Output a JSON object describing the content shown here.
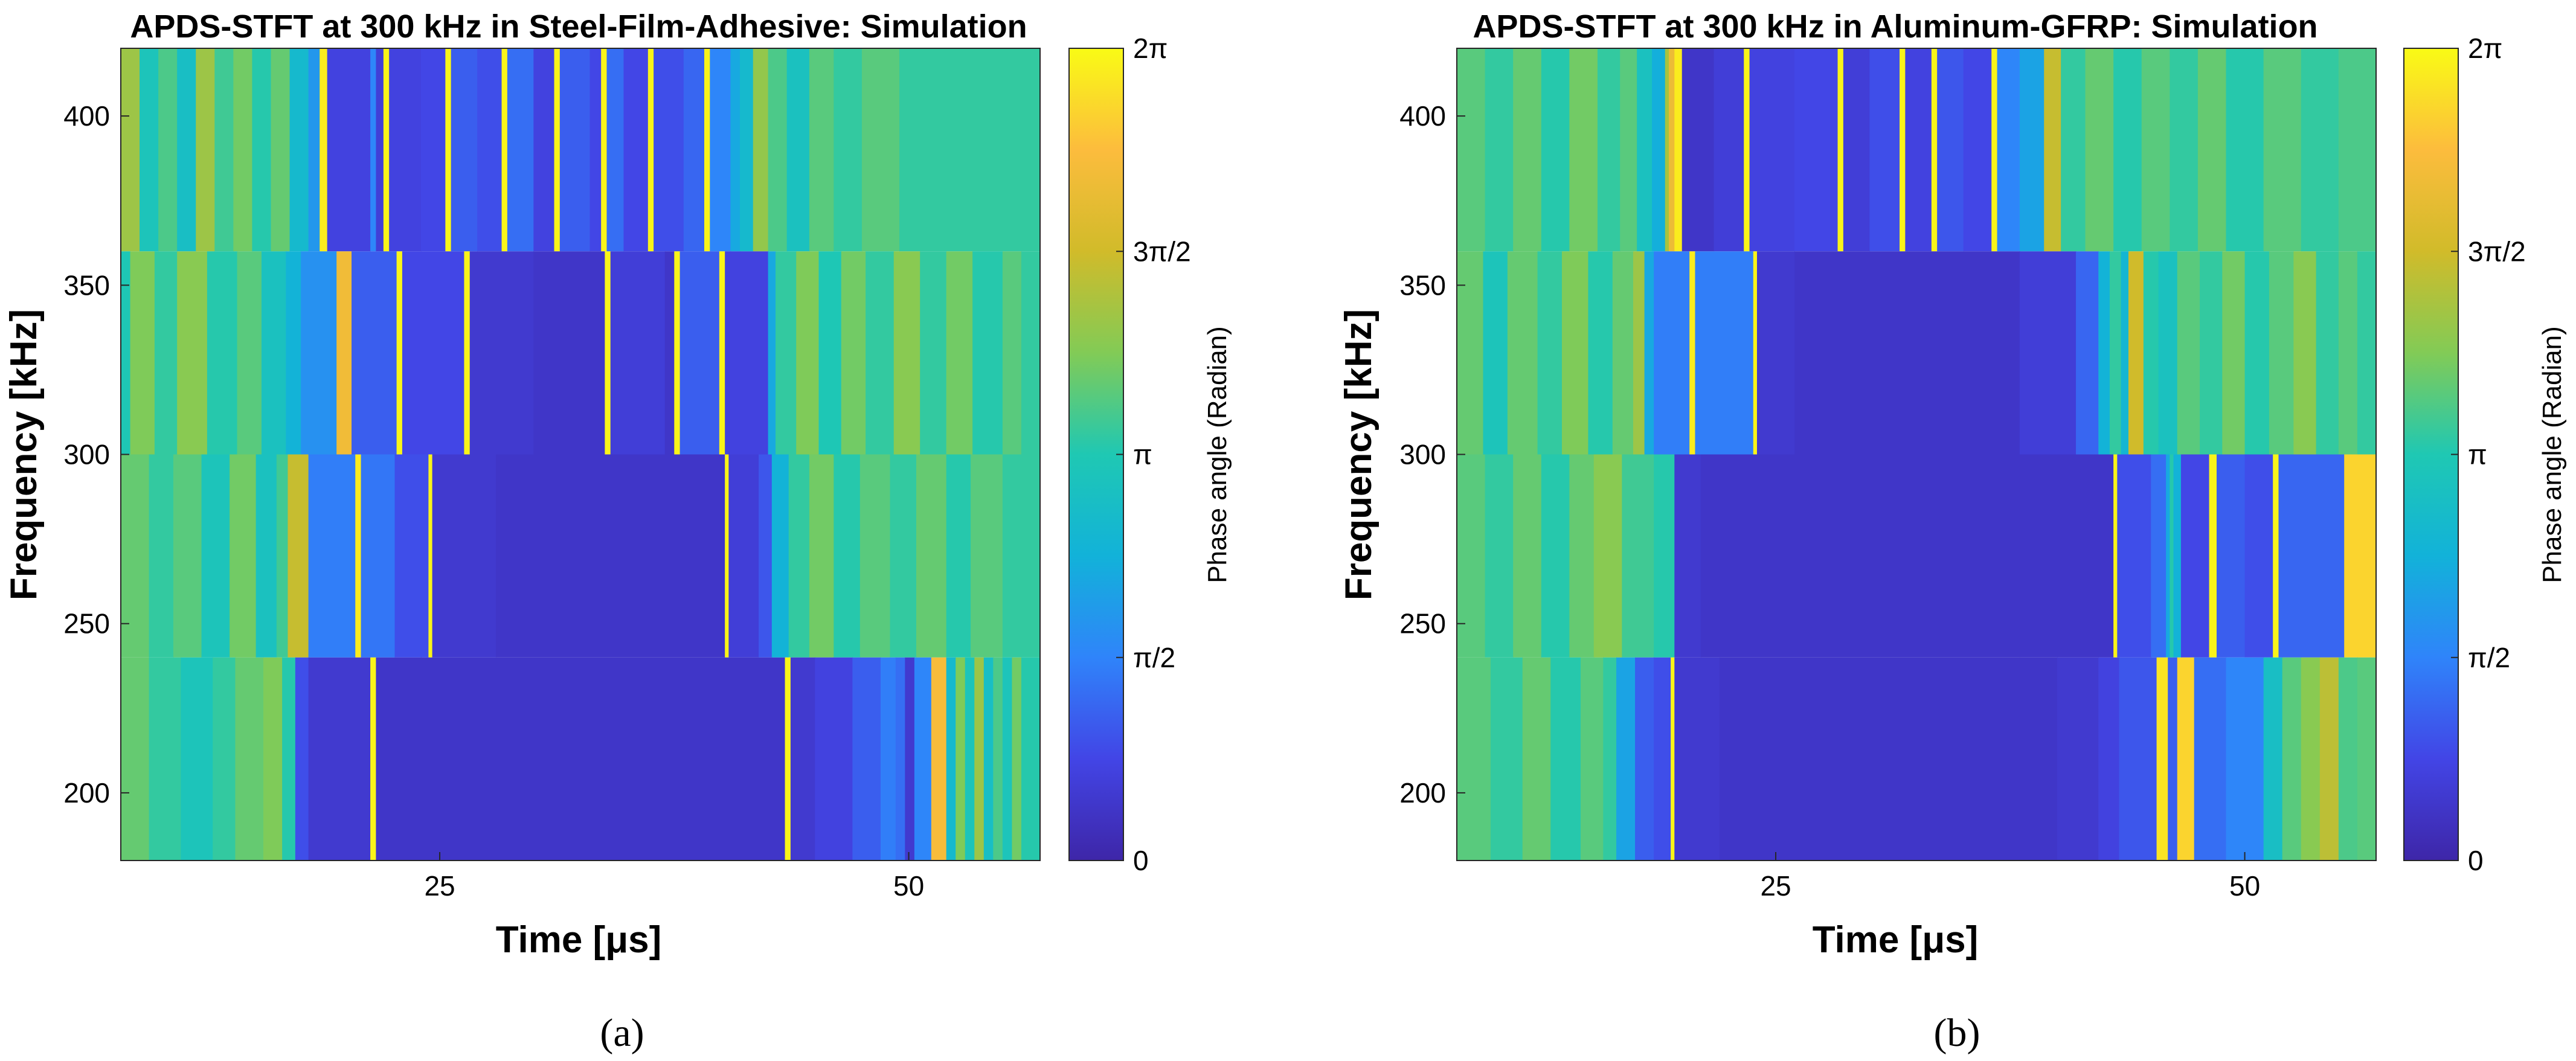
{
  "colors": {
    "c0": "#3e26a8",
    "c1": "#4245e6",
    "c2": "#2f84fa",
    "c3": "#12b2d9",
    "c4": "#1fc8b3",
    "c5": "#82cb56",
    "c6": "#d1bb2a",
    "c7": "#fcbc3d",
    "c8": "#f9fb15"
  },
  "chart_data": [
    {
      "type": "heatmap",
      "panel_label": "(a)",
      "title": "APDS-STFT at 300 kHz in Steel-Film-Adhesive: Simulation",
      "xlabel": "Time [μs]",
      "ylabel": "Frequency [kHz]",
      "colorbar_label": "Phase angle (Radian)",
      "xlim": [
        8,
        57
      ],
      "ylim": [
        180,
        420
      ],
      "xticks": [
        25,
        50
      ],
      "yticks": [
        200,
        250,
        300,
        350,
        400
      ],
      "colorbar_ticks": [
        "0",
        "π/2",
        "π",
        "3π/2",
        "2π"
      ],
      "colorbar_range": [
        0,
        6.2832
      ],
      "bands": [
        {
          "y0": 360,
          "y1": 420,
          "segments": [
            [
              8,
              4.2
            ],
            [
              9,
              3.0
            ],
            [
              10,
              3.5
            ],
            [
              11,
              2.8
            ],
            [
              12,
              4.2
            ],
            [
              13,
              3.4
            ],
            [
              14,
              3.8
            ],
            [
              15,
              3.2
            ],
            [
              16,
              3.7
            ],
            [
              17,
              2.6
            ],
            [
              18,
              1.9
            ],
            [
              18.6,
              6.1
            ],
            [
              19,
              0.7
            ],
            [
              21.3,
              1.6
            ],
            [
              21.6,
              0.6
            ],
            [
              22,
              6.2
            ],
            [
              22.3,
              0.7
            ],
            [
              24,
              0.8
            ],
            [
              25.3,
              6.2
            ],
            [
              25.6,
              1.1
            ],
            [
              27,
              0.9
            ],
            [
              28.3,
              6.2
            ],
            [
              28.6,
              1.3
            ],
            [
              30,
              0.7
            ],
            [
              31.1,
              6.2
            ],
            [
              31.4,
              1.1
            ],
            [
              33,
              0.8
            ],
            [
              33.6,
              6.2
            ],
            [
              33.9,
              1.3
            ],
            [
              34.8,
              0.8
            ],
            [
              36.1,
              6.2
            ],
            [
              36.4,
              0.9
            ],
            [
              38,
              1.2
            ],
            [
              39.1,
              6.2
            ],
            [
              39.4,
              1.6
            ],
            [
              40.5,
              2.2
            ],
            [
              41,
              2.6
            ],
            [
              41.7,
              4.1
            ],
            [
              42.5,
              3.5
            ],
            [
              43.5,
              2.9
            ],
            [
              44.7,
              3.6
            ],
            [
              46,
              3.3
            ],
            [
              47.5,
              3.6
            ],
            [
              49.5,
              3.3
            ]
          ]
        },
        {
          "y0": 300,
          "y1": 360,
          "segments": [
            [
              8,
              3.1
            ],
            [
              8.5,
              3.9
            ],
            [
              9.8,
              3.3
            ],
            [
              11,
              4.0
            ],
            [
              12.6,
              3.2
            ],
            [
              14.2,
              3.6
            ],
            [
              15.5,
              2.9
            ],
            [
              16.8,
              2.4
            ],
            [
              17.6,
              1.8
            ],
            [
              19.5,
              5.3
            ],
            [
              20.3,
              1.1
            ],
            [
              22.7,
              6.2
            ],
            [
              23,
              0.8
            ],
            [
              26.3,
              6.2
            ],
            [
              26.6,
              0.5
            ],
            [
              30,
              0.4
            ],
            [
              33.8,
              6.2
            ],
            [
              34.1,
              0.6
            ],
            [
              37,
              0.4
            ],
            [
              37.5,
              6.2
            ],
            [
              37.8,
              1.1
            ],
            [
              39.9,
              6.2
            ],
            [
              40.2,
              0.7
            ],
            [
              42.5,
              2.2
            ],
            [
              42.9,
              3.3
            ],
            [
              44,
              3.9
            ],
            [
              45.2,
              3.1
            ],
            [
              46.4,
              3.8
            ],
            [
              47.7,
              3.3
            ],
            [
              49.2,
              4.0
            ],
            [
              50.6,
              3.3
            ],
            [
              52,
              3.8
            ],
            [
              53.4,
              3.2
            ],
            [
              55,
              3.6
            ],
            [
              56,
              3.3
            ]
          ]
        },
        {
          "y0": 240,
          "y1": 300,
          "segments": [
            [
              8,
              3.7
            ],
            [
              9.5,
              3.3
            ],
            [
              10.8,
              3.6
            ],
            [
              12.3,
              3.0
            ],
            [
              13.8,
              3.8
            ],
            [
              15.2,
              2.9
            ],
            [
              16.3,
              3.4
            ],
            [
              16.9,
              4.6
            ],
            [
              18,
              1.5
            ],
            [
              20.5,
              6.1
            ],
            [
              20.8,
              1.4
            ],
            [
              22.6,
              0.9
            ],
            [
              24.4,
              6.2
            ],
            [
              24.6,
              0.5
            ],
            [
              28,
              0.4
            ],
            [
              40.2,
              6.2
            ],
            [
              40.4,
              0.6
            ],
            [
              42,
              1.0
            ],
            [
              42.7,
              2.4
            ],
            [
              43.6,
              3.3
            ],
            [
              44.7,
              3.8
            ],
            [
              46,
              3.2
            ],
            [
              47.4,
              3.6
            ],
            [
              49,
              3.3
            ],
            [
              50.4,
              3.7
            ],
            [
              52,
              3.2
            ],
            [
              53.3,
              3.6
            ],
            [
              55,
              3.3
            ]
          ]
        },
        {
          "y0": 180,
          "y1": 420,
          "skip": true,
          "segments": []
        },
        {
          "y0": 180,
          "y1": 240,
          "segments": [
            [
              8,
              3.7
            ],
            [
              9.5,
              3.3
            ],
            [
              11.2,
              3.0
            ],
            [
              12.9,
              3.3
            ],
            [
              14.1,
              3.7
            ],
            [
              15.6,
              3.9
            ],
            [
              16.6,
              3.2
            ],
            [
              17.3,
              0.9
            ],
            [
              18,
              0.5
            ],
            [
              21.3,
              6.2
            ],
            [
              21.6,
              0.4
            ],
            [
              24,
              0.4
            ],
            [
              43.4,
              6.2
            ],
            [
              43.7,
              0.5
            ],
            [
              45,
              0.7
            ],
            [
              47,
              1.1
            ],
            [
              48.5,
              1.5
            ],
            [
              49.3,
              1.3
            ],
            [
              49.8,
              0.5
            ],
            [
              50.3,
              1.6
            ],
            [
              51.2,
              5.4
            ],
            [
              52,
              2.6
            ],
            [
              52.5,
              3.9
            ],
            [
              53,
              3.0
            ],
            [
              53.5,
              4.2
            ],
            [
              54,
              2.8
            ],
            [
              54.5,
              3.5
            ],
            [
              55,
              3.0
            ],
            [
              55.5,
              3.8
            ],
            [
              56,
              3.2
            ]
          ]
        }
      ]
    },
    {
      "type": "heatmap",
      "panel_label": "(b)",
      "title": "APDS-STFT at 300 kHz in Aluminum-GFRP: Simulation",
      "xlabel": "Time [μs]",
      "ylabel": "Frequency [kHz]",
      "colorbar_label": "Phase angle (Radian)",
      "xlim": [
        8,
        57
      ],
      "ylim": [
        180,
        420
      ],
      "xticks": [
        25,
        50
      ],
      "yticks": [
        200,
        250,
        300,
        350,
        400
      ],
      "colorbar_ticks": [
        "0",
        "π/2",
        "π",
        "3π/2",
        "2π"
      ],
      "colorbar_range": [
        0,
        6.2832
      ],
      "bands": [
        {
          "y0": 360,
          "y1": 420,
          "segments": [
            [
              8,
              3.6
            ],
            [
              9.5,
              3.3
            ],
            [
              11,
              3.7
            ],
            [
              12.5,
              3.2
            ],
            [
              14,
              3.8
            ],
            [
              15.5,
              3.3
            ],
            [
              16.7,
              3.6
            ],
            [
              17.6,
              2.9
            ],
            [
              18.4,
              2.3
            ],
            [
              19.1,
              4.3
            ],
            [
              19.3,
              5.2
            ],
            [
              19.6,
              6.1
            ],
            [
              20,
              0.4
            ],
            [
              21.7,
              0.6
            ],
            [
              23.3,
              6.2
            ],
            [
              23.6,
              0.7
            ],
            [
              26,
              0.8
            ],
            [
              28.3,
              6.2
            ],
            [
              28.6,
              0.6
            ],
            [
              30,
              0.9
            ],
            [
              31.6,
              6.2
            ],
            [
              31.9,
              0.7
            ],
            [
              33.3,
              6.2
            ],
            [
              33.6,
              1.0
            ],
            [
              35,
              0.8
            ],
            [
              36.5,
              6.2
            ],
            [
              36.8,
              1.6
            ],
            [
              38,
              2.1
            ],
            [
              39.3,
              4.6
            ],
            [
              40.2,
              3.3
            ],
            [
              41.5,
              3.7
            ],
            [
              43,
              3.2
            ],
            [
              44.5,
              3.6
            ],
            [
              46,
              3.3
            ],
            [
              47.5,
              3.7
            ],
            [
              49,
              3.2
            ],
            [
              51,
              3.6
            ],
            [
              53,
              3.3
            ],
            [
              55,
              3.5
            ]
          ]
        },
        {
          "y0": 300,
          "y1": 360,
          "segments": [
            [
              8,
              3.7
            ],
            [
              9.4,
              3.0
            ],
            [
              10.7,
              3.7
            ],
            [
              12.3,
              3.3
            ],
            [
              13.6,
              3.9
            ],
            [
              15,
              3.2
            ],
            [
              16.3,
              3.7
            ],
            [
              17.4,
              4.2
            ],
            [
              18,
              2.2
            ],
            [
              18.5,
              1.5
            ],
            [
              20.4,
              6.1
            ],
            [
              20.7,
              1.5
            ],
            [
              23.8,
              6.2
            ],
            [
              24,
              0.5
            ],
            [
              26,
              0.4
            ],
            [
              32,
              0.4
            ],
            [
              38,
              0.6
            ],
            [
              41,
              1.2
            ],
            [
              42.2,
              2.4
            ],
            [
              42.8,
              3.3
            ],
            [
              43.4,
              2.5
            ],
            [
              43.8,
              4.7
            ],
            [
              44.6,
              3.2
            ],
            [
              45.4,
              2.9
            ],
            [
              46.4,
              3.6
            ],
            [
              47.6,
              3.3
            ],
            [
              48.8,
              3.8
            ],
            [
              50,
              3.2
            ],
            [
              51.3,
              3.6
            ],
            [
              52.6,
              4.0
            ],
            [
              53.8,
              3.3
            ],
            [
              55,
              3.6
            ],
            [
              56,
              3.3
            ]
          ]
        },
        {
          "y0": 240,
          "y1": 300,
          "segments": [
            [
              8,
              3.6
            ],
            [
              9.5,
              3.3
            ],
            [
              11,
              3.7
            ],
            [
              12.5,
              3.2
            ],
            [
              14,
              3.7
            ],
            [
              15.3,
              4.0
            ],
            [
              16.8,
              3.4
            ],
            [
              18.5,
              3.2
            ],
            [
              19.6,
              0.5
            ],
            [
              21,
              0.4
            ],
            [
              38,
              0.4
            ],
            [
              43,
              6.2
            ],
            [
              43.2,
              0.9
            ],
            [
              45,
              1.3
            ],
            [
              45.8,
              2.2
            ],
            [
              46,
              3.2
            ],
            [
              46.2,
              2.4
            ],
            [
              46.6,
              0.8
            ],
            [
              48.1,
              6.2
            ],
            [
              48.5,
              1.1
            ],
            [
              50,
              0.9
            ],
            [
              51.5,
              6.2
            ],
            [
              51.8,
              1.2
            ],
            [
              55.3,
              5.8
            ],
            [
              56,
              5.8
            ]
          ]
        },
        {
          "y0": 180,
          "y1": 240,
          "segments": [
            [
              8,
              3.6
            ],
            [
              9.8,
              3.3
            ],
            [
              11.5,
              3.7
            ],
            [
              13,
              3.2
            ],
            [
              14.6,
              3.6
            ],
            [
              15.8,
              3.3
            ],
            [
              16.5,
              2.1
            ],
            [
              17.5,
              1.1
            ],
            [
              18.5,
              0.9
            ],
            [
              19.4,
              6.2
            ],
            [
              19.6,
              0.5
            ],
            [
              22,
              0.4
            ],
            [
              40,
              0.5
            ],
            [
              42.2,
              0.7
            ],
            [
              43.3,
              1.0
            ],
            [
              45.3,
              6.0
            ],
            [
              45.9,
              1.1
            ],
            [
              46.4,
              5.8
            ],
            [
              47.3,
              1.3
            ],
            [
              49,
              1.6
            ],
            [
              51,
              2.8
            ],
            [
              52,
              3.6
            ],
            [
              53,
              4.0
            ],
            [
              54,
              4.5
            ],
            [
              55,
              3.5
            ],
            [
              56,
              3.6
            ]
          ]
        }
      ]
    }
  ]
}
